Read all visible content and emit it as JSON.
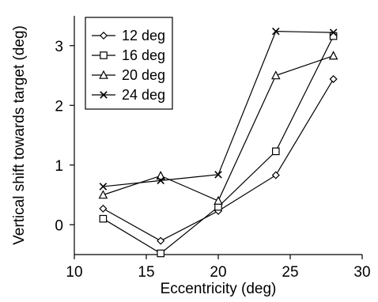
{
  "chart_data": {
    "type": "line",
    "xlabel": "Eccentricity (deg)",
    "ylabel": "Vertical shift towards target (deg)",
    "xlim": [
      10,
      30
    ],
    "ylim": [
      -0.5,
      3.5
    ],
    "xticks": [
      10,
      15,
      20,
      25,
      30
    ],
    "yticks": [
      0,
      1,
      2,
      3
    ],
    "grid": false,
    "legend": "top-left",
    "x": [
      12,
      16,
      20,
      24,
      28
    ],
    "series": [
      {
        "name": "12 deg",
        "marker": "diamond",
        "values": [
          0.27,
          -0.27,
          0.23,
          0.83,
          2.44
        ]
      },
      {
        "name": "16 deg",
        "marker": "square",
        "values": [
          0.1,
          -0.48,
          0.3,
          1.23,
          3.16
        ]
      },
      {
        "name": "20 deg",
        "marker": "triangle",
        "values": [
          0.5,
          0.82,
          0.4,
          2.5,
          2.83
        ]
      },
      {
        "name": "24 deg",
        "marker": "x",
        "values": [
          0.64,
          0.74,
          0.84,
          3.24,
          3.22
        ]
      }
    ],
    "line_color": "#000000"
  }
}
